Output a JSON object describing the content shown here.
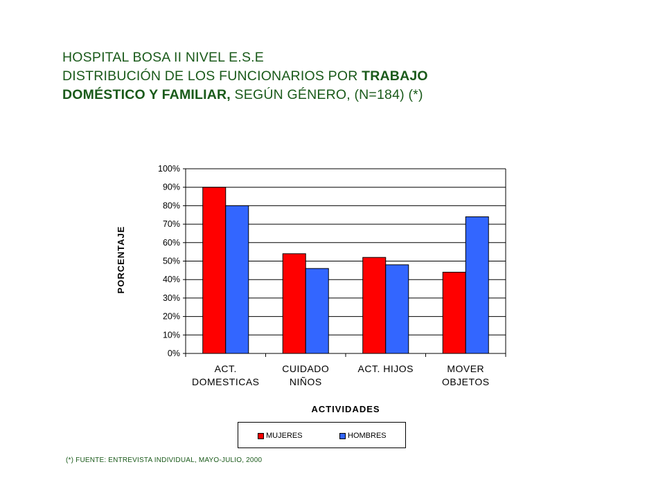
{
  "title": {
    "line1": "HOSPITAL BOSA II NIVEL E.S.E",
    "line2_normal": "DISTRIBUCIÓN DE LOS FUNCIONARIOS  POR ",
    "line2_bold": "TRABAJO",
    "line3_bold": "DOMÉSTICO Y FAMILIAR,",
    "line3_normal": " SEGÚN GÉNERO,  (N=184) (*)"
  },
  "footnote": "(*) FUENTE: ENTREVISTA  INDIVIDUAL, MAYO-JULIO, 2000",
  "colors": {
    "mujeres": "#ff0000",
    "hombres": "#3366ff",
    "text": "#1a5a1a"
  },
  "chart_data": {
    "type": "bar",
    "xlabel": "ACTIVIDADES",
    "ylabel": "PORCENTAJE",
    "ylim": [
      0,
      100
    ],
    "yticks": [
      "0%",
      "10%",
      "20%",
      "30%",
      "40%",
      "50%",
      "60%",
      "70%",
      "80%",
      "90%",
      "100%"
    ],
    "categories": [
      [
        "ACT.",
        "DOMESTICAS"
      ],
      [
        "CUIDADO",
        "NIÑOS"
      ],
      [
        "ACT. HIJOS"
      ],
      [
        "MOVER",
        "OBJETOS"
      ]
    ],
    "series": [
      {
        "name": "MUJERES",
        "color": "#ff0000",
        "values": [
          90,
          54,
          52,
          44
        ]
      },
      {
        "name": "HOMBRES",
        "color": "#3366ff",
        "values": [
          80,
          46,
          48,
          74
        ]
      }
    ],
    "grid": true,
    "legend_position": "bottom"
  }
}
